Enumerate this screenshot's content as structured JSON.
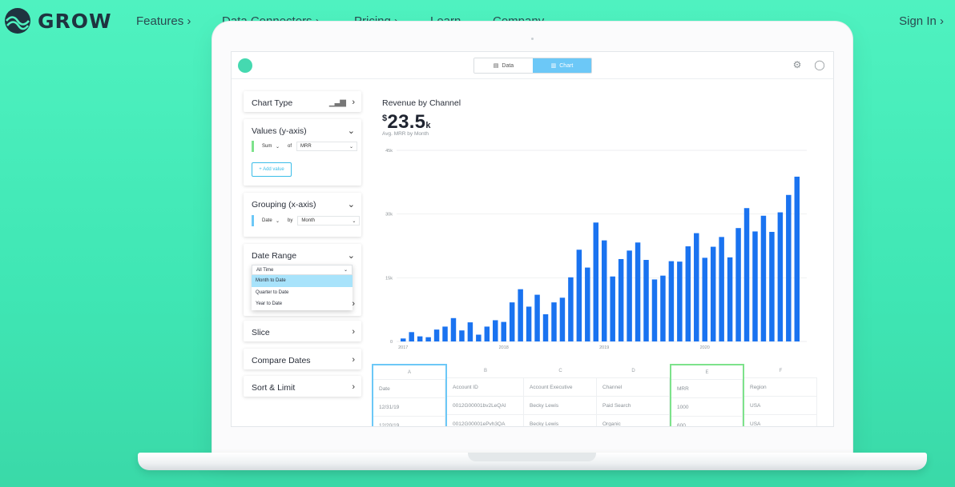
{
  "nav": {
    "logo_text": "GROW",
    "items": [
      "Features ›",
      "Data Connectors ›",
      "Pricing ›",
      "Learn",
      "Company"
    ],
    "signin": "Sign In ›"
  },
  "app": {
    "toggle": {
      "data": "Data",
      "chart": "Chart"
    },
    "panel": {
      "chart_type": "Chart Type",
      "values": {
        "title": "Values (y-axis)",
        "agg": "Sum",
        "of": "of",
        "field": "MRR",
        "add_value": "+ Add value"
      },
      "grouping": {
        "title": "Grouping (x-axis)",
        "field": "Date",
        "by": "by",
        "period": "Month"
      },
      "date_range": {
        "title": "Date Range",
        "selected": "All Time",
        "options": [
          "Month to Date",
          "Quarter to Date",
          "Year to Date"
        ]
      },
      "slice": "Slice",
      "compare": "Compare Dates",
      "sort": "Sort & Limit"
    },
    "chart_header": {
      "title": "Revenue by Channel",
      "value_prefix": "$",
      "value": "23.5",
      "value_suffix": "k",
      "subtitle": "Avg. MRR by Month"
    },
    "table": {
      "letters": [
        "A",
        "B",
        "C",
        "D",
        "E",
        "F"
      ],
      "headers": [
        "Date",
        "Account ID",
        "Account Executive",
        "Channel",
        "MRR",
        "Region"
      ],
      "rows": [
        [
          "12/31/19",
          "0012G00001bv2LeQAI",
          "Becky Lewis",
          "Paid Search",
          "1000",
          "USA"
        ],
        [
          "12/20/19",
          "0012G00001ePvh3QA",
          "Becky Lewis",
          "Organic",
          "600",
          "USA"
        ]
      ]
    }
  },
  "colors": {
    "bar": "#1a73f0",
    "accent": "#6cc8f7",
    "green": "#7de28b"
  },
  "chart_data": {
    "type": "bar",
    "title": "Revenue by Channel",
    "ylim": [
      0,
      45000
    ],
    "y_ticks": [
      "0",
      "15k",
      "30k",
      "45k"
    ],
    "x_tick_labels": [
      "2017",
      "2018",
      "2019",
      "2020"
    ],
    "x_tick_index": [
      0,
      12,
      24,
      36
    ],
    "series": [
      {
        "values": [
          700,
          2200,
          1200,
          1000,
          2800,
          3500,
          5500,
          2600,
          4500,
          1600,
          3500,
          5000,
          4600,
          9200,
          12300,
          8200,
          11000,
          6400,
          9200,
          10300,
          15100,
          21600,
          17400,
          28000,
          23800,
          15300,
          19400,
          21400,
          23300,
          19200,
          14600,
          15500,
          18900,
          18800,
          22400,
          25500,
          19700,
          22300,
          24600,
          19800,
          26700,
          31400,
          25900,
          29600,
          25800,
          30400,
          34500,
          38800
        ]
      }
    ]
  }
}
